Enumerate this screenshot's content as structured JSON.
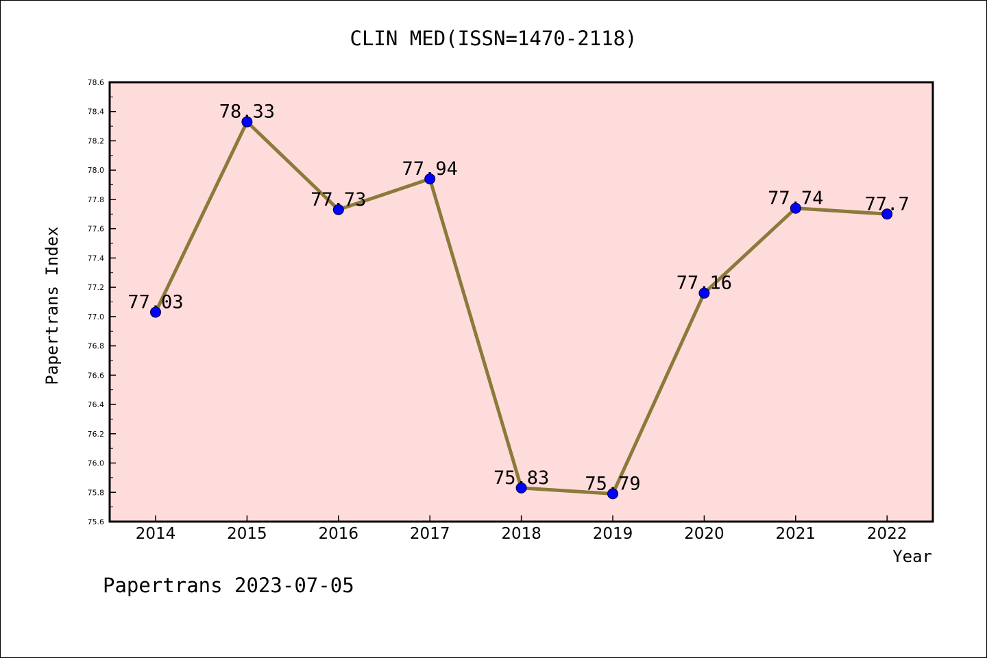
{
  "chart_data": {
    "type": "line",
    "title": "CLIN MED(ISSN=1470-2118)",
    "xlabel": "Year",
    "ylabel": "Papertrans Index",
    "footer": "Papertrans 2023-07-05",
    "categories": [
      "2014",
      "2015",
      "2016",
      "2017",
      "2018",
      "2019",
      "2020",
      "2021",
      "2022"
    ],
    "values": [
      77.03,
      78.33,
      77.73,
      77.94,
      75.83,
      75.79,
      77.16,
      77.74,
      77.7
    ],
    "point_labels": [
      "77.03",
      "78.33",
      "77.73",
      "77.94",
      "75.83",
      "75.79",
      "77.16",
      "77.74",
      "77.7"
    ],
    "ylim": [
      75.6,
      78.6
    ],
    "yticks": [
      "75.6",
      "75.8",
      "76.0",
      "76.2",
      "76.4",
      "76.6",
      "76.8",
      "77.0",
      "77.2",
      "77.4",
      "77.6",
      "77.8",
      "78.0",
      "78.2",
      "78.4",
      "78.6"
    ],
    "grid": false,
    "legend": "none",
    "colors": {
      "plot_background": "#ffdcdc",
      "line": "#8b7a3a",
      "marker": "#0000ff",
      "axis": "#000000"
    }
  }
}
